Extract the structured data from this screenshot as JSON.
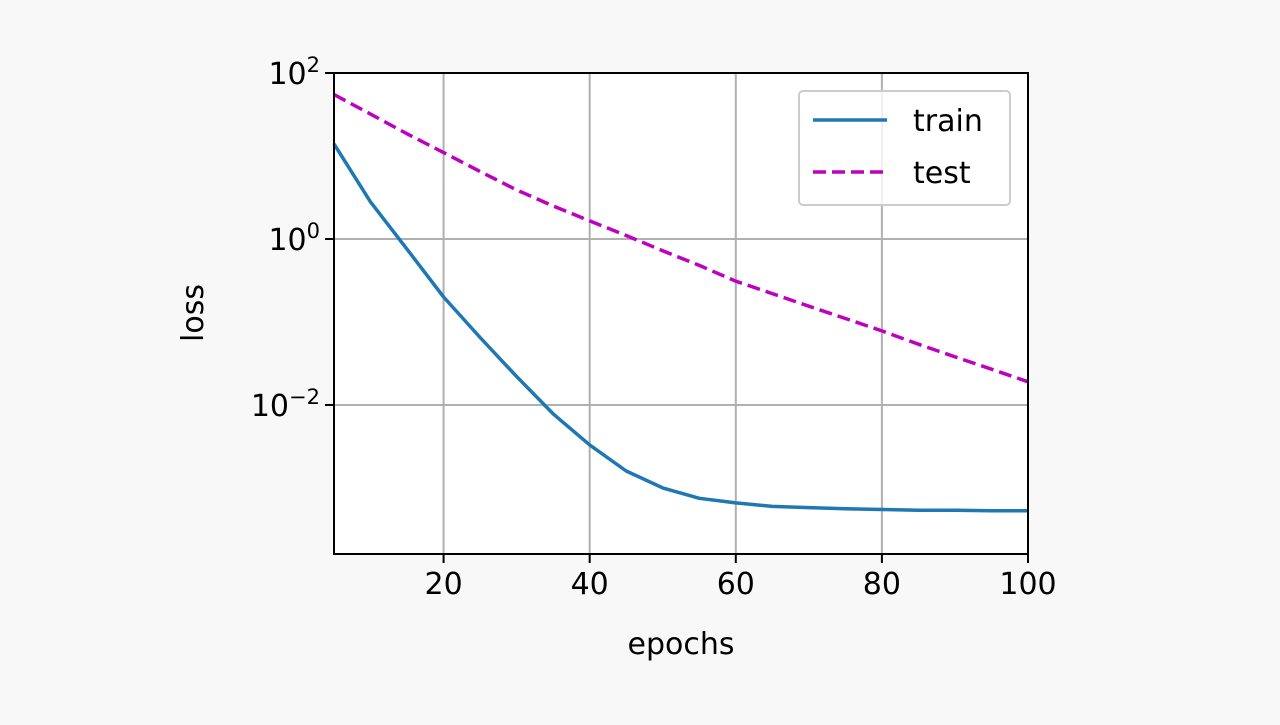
{
  "chart_data": {
    "type": "line",
    "title": "",
    "xlabel": "epochs",
    "ylabel": "loss",
    "xlim": [
      5,
      100
    ],
    "ylim": [
      0.00016,
      100
    ],
    "yscale": "log",
    "grid": true,
    "legend_position": "top-right",
    "x_ticks": [
      20,
      40,
      60,
      80,
      100
    ],
    "x_tick_labels": [
      "20",
      "40",
      "60",
      "80",
      "100"
    ],
    "y_ticks": [
      {
        "value": 100,
        "base": "10",
        "exp": "2"
      },
      {
        "value": 1,
        "base": "10",
        "exp": "0"
      },
      {
        "value": 0.01,
        "base": "10",
        "exp": "−2"
      }
    ],
    "x": [
      5,
      10,
      15,
      20,
      25,
      30,
      35,
      40,
      45,
      50,
      55,
      60,
      65,
      70,
      75,
      80,
      85,
      90,
      95,
      100
    ],
    "series": [
      {
        "name": "train",
        "color": "#1f77b4",
        "style": "solid",
        "values": [
          14,
          2.8,
          0.75,
          0.2,
          0.065,
          0.022,
          0.0078,
          0.0033,
          0.0016,
          0.001,
          0.00075,
          0.00066,
          0.0006,
          0.00058,
          0.00056,
          0.00055,
          0.00054,
          0.00054,
          0.00053,
          0.00053
        ]
      },
      {
        "name": "test",
        "color": "#bf00bf",
        "style": "dashed",
        "values": [
          55,
          32,
          18.5,
          11,
          6.5,
          3.9,
          2.5,
          1.65,
          1.1,
          0.72,
          0.48,
          0.31,
          0.22,
          0.155,
          0.11,
          0.078,
          0.054,
          0.038,
          0.027,
          0.019
        ]
      }
    ]
  }
}
